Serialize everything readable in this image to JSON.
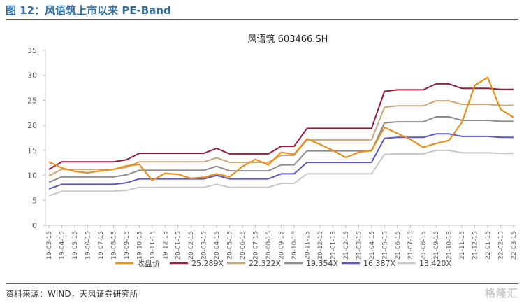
{
  "figure": {
    "title": "图 12：风语筑上市以来 PE-Band",
    "source": "资料来源：WIND，天风证券研究所",
    "watermark": "格隆汇"
  },
  "chart_data": {
    "type": "line",
    "title": "风语筑 603466.SH",
    "ylim": [
      0,
      35
    ],
    "yticks": [
      0,
      5,
      10,
      15,
      20,
      25,
      30,
      35
    ],
    "grid": false,
    "legend_position": "bottom",
    "x": [
      "19-03-15",
      "19-04-15",
      "19-05-15",
      "19-06-15",
      "19-07-15",
      "19-08-15",
      "19-09-15",
      "19-10-15",
      "19-11-15",
      "19-12-15",
      "20-01-15",
      "20-02-15",
      "20-03-15",
      "20-04-15",
      "20-05-15",
      "20-06-15",
      "20-07-15",
      "20-08-15",
      "20-09-15",
      "20-10-15",
      "20-11-15",
      "20-12-15",
      "21-01-15",
      "21-02-15",
      "21-03-15",
      "21-04-15",
      "21-05-15",
      "21-06-15",
      "21-07-15",
      "21-08-15",
      "21-09-15",
      "21-10-15",
      "21-11-15",
      "21-12-15",
      "22-01-15",
      "22-02-15",
      "22-03-15"
    ],
    "series": [
      {
        "name": "收盘价",
        "color": "#e8901f",
        "values": [
          12.7,
          11.5,
          10.8,
          10.5,
          10.9,
          11.2,
          11.9,
          12.2,
          9.0,
          10.4,
          10.2,
          9.4,
          9.6,
          10.3,
          9.7,
          11.8,
          13.2,
          12.1,
          14.6,
          14.2,
          17.3,
          16.2,
          15.0,
          13.6,
          14.6,
          15.0,
          19.6,
          18.4,
          17.2,
          15.6,
          16.4,
          17.0,
          20.6,
          28.0,
          29.6,
          23.2,
          21.6
        ]
      },
      {
        "name": "25.289X",
        "color": "#9b1b3c",
        "values": [
          11.2,
          12.7,
          12.7,
          12.7,
          12.7,
          12.7,
          13.1,
          14.4,
          14.4,
          14.4,
          14.4,
          14.4,
          14.4,
          15.4,
          14.3,
          14.3,
          14.3,
          14.3,
          15.8,
          15.8,
          19.4,
          19.4,
          19.4,
          19.4,
          19.4,
          19.4,
          26.8,
          27.1,
          27.1,
          27.1,
          28.3,
          28.3,
          27.4,
          27.4,
          27.4,
          27.2,
          27.2
        ]
      },
      {
        "name": "22.322X",
        "color": "#cfa678",
        "values": [
          9.9,
          11.2,
          11.2,
          11.2,
          11.2,
          11.2,
          11.6,
          12.7,
          12.7,
          12.7,
          12.7,
          12.7,
          12.7,
          13.5,
          12.6,
          12.6,
          12.6,
          12.6,
          14.0,
          14.0,
          17.1,
          17.1,
          17.1,
          17.1,
          17.1,
          17.1,
          23.6,
          23.9,
          23.9,
          23.9,
          24.9,
          24.9,
          24.2,
          24.2,
          24.2,
          24.0,
          24.0
        ]
      },
      {
        "name": "19.354X",
        "color": "#8c8c8c",
        "values": [
          8.6,
          9.7,
          9.7,
          9.7,
          9.7,
          9.7,
          10.1,
          11.0,
          11.0,
          11.0,
          11.0,
          11.0,
          11.0,
          11.8,
          10.9,
          10.9,
          10.9,
          10.9,
          12.1,
          12.1,
          14.9,
          14.9,
          14.9,
          14.9,
          14.9,
          14.9,
          20.5,
          20.7,
          20.7,
          20.7,
          21.7,
          21.7,
          21.0,
          21.0,
          21.0,
          20.8,
          20.8
        ]
      },
      {
        "name": "16.387X",
        "color": "#5b57c8",
        "values": [
          7.3,
          8.2,
          8.2,
          8.2,
          8.2,
          8.2,
          8.5,
          9.3,
          9.3,
          9.3,
          9.3,
          9.3,
          9.3,
          10.0,
          9.3,
          9.3,
          9.3,
          9.3,
          10.3,
          10.3,
          12.6,
          12.6,
          12.6,
          12.6,
          12.6,
          12.6,
          17.4,
          17.6,
          17.6,
          17.6,
          18.3,
          18.3,
          17.8,
          17.8,
          17.8,
          17.6,
          17.6
        ]
      },
      {
        "name": "13.420X",
        "color": "#c7c7c7",
        "values": [
          5.9,
          6.8,
          6.8,
          6.8,
          6.8,
          6.8,
          7.0,
          7.6,
          7.6,
          7.6,
          7.6,
          7.6,
          7.6,
          8.2,
          7.6,
          7.6,
          7.6,
          7.6,
          8.4,
          8.4,
          10.3,
          10.3,
          10.3,
          10.3,
          10.3,
          10.3,
          14.2,
          14.3,
          14.3,
          14.3,
          15.0,
          15.0,
          14.5,
          14.5,
          14.5,
          14.4,
          14.4
        ]
      }
    ]
  }
}
